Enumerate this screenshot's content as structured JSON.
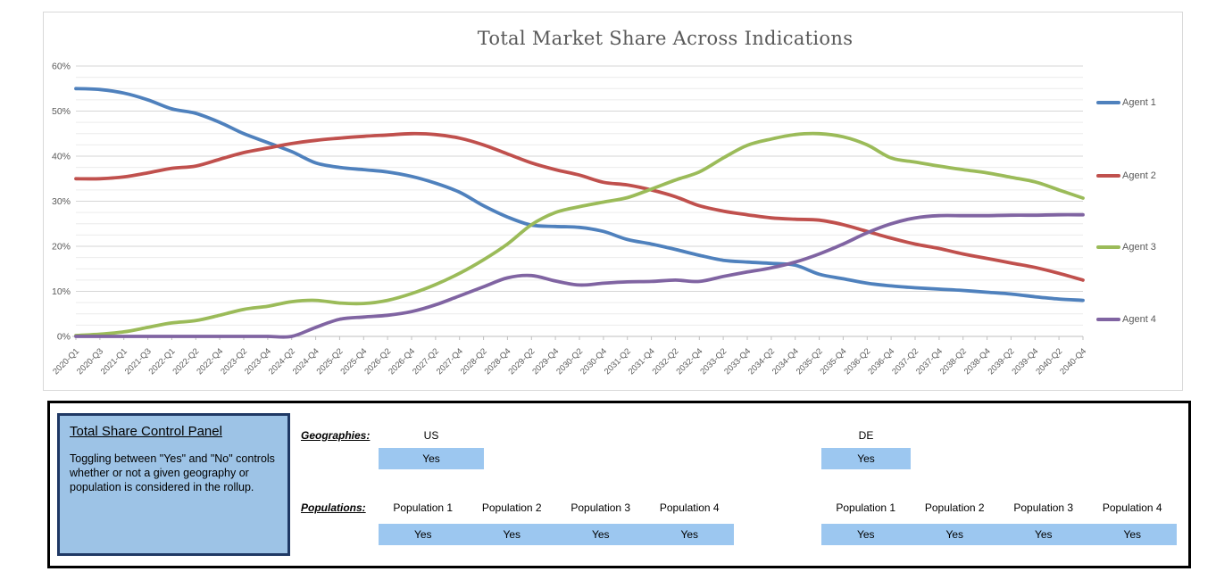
{
  "chart": {
    "title": "Total Market Share Across Indications",
    "y_tick_labels": [
      "0%",
      "10%",
      "20%",
      "30%",
      "40%",
      "50%",
      "60%"
    ],
    "axis_text_color": "#595959",
    "major_grid_color": "#d6d6d6",
    "minor_grid_color": "#ececec",
    "axis_line_color": "#bfbfbf"
  },
  "chart_data": {
    "type": "line",
    "title": "Total Market Share Across Indications",
    "xlabel": "",
    "ylabel": "",
    "ylim": [
      0,
      60
    ],
    "y_unit": "percent",
    "y_major_step": 10,
    "y_minor_step": 2.5,
    "grid": true,
    "legend_position": "right",
    "categories": [
      "2020-Q1",
      "2020-Q3",
      "2021-Q1",
      "2021-Q3",
      "2022-Q1",
      "2022-Q2",
      "2022-Q4",
      "2023-Q2",
      "2023-Q4",
      "2024-Q2",
      "2024-Q4",
      "2025-Q2",
      "2025-Q4",
      "2026-Q2",
      "2026-Q4",
      "2027-Q2",
      "2027-Q4",
      "2028-Q2",
      "2028-Q4",
      "2029-Q2",
      "2029-Q4",
      "2030-Q2",
      "2030-Q4",
      "2031-Q2",
      "2031-Q4",
      "2032-Q2",
      "2032-Q4",
      "2033-Q2",
      "2033-Q4",
      "2034-Q2",
      "2034-Q4",
      "2035-Q2",
      "2035-Q4",
      "2036-Q2",
      "2036-Q4",
      "2037-Q2",
      "2037-Q4",
      "2038-Q2",
      "2038-Q4",
      "2039-Q2",
      "2039-Q4",
      "2040-Q2",
      "2040-Q4"
    ],
    "series": [
      {
        "name": "Agent 1",
        "color": "#4f81bd",
        "values": [
          55,
          54.8,
          54,
          52.5,
          50.5,
          49.5,
          47.5,
          45,
          43,
          41,
          38.5,
          37.5,
          37,
          36.5,
          35.5,
          34,
          32,
          29,
          26.5,
          24.7,
          24.4,
          24.2,
          23.3,
          21.5,
          20.5,
          19.3,
          18,
          16.9,
          16.5,
          16.2,
          15.8,
          13.8,
          12.8,
          11.8,
          11.2,
          10.8,
          10.5,
          10.2,
          9.8,
          9.4,
          8.8,
          8.3,
          8
        ]
      },
      {
        "name": "Agent 2",
        "color": "#c0504d",
        "values": [
          35,
          35,
          35.4,
          36.3,
          37.3,
          37.8,
          39.3,
          40.8,
          41.8,
          42.8,
          43.5,
          44,
          44.4,
          44.7,
          45,
          44.8,
          44,
          42.5,
          40.5,
          38.5,
          37,
          35.8,
          34.2,
          33.6,
          32.5,
          31,
          29,
          27.8,
          27,
          26.3,
          26,
          25.8,
          24.8,
          23.3,
          21.8,
          20.5,
          19.5,
          18.3,
          17.3,
          16.3,
          15.3,
          14,
          12.5
        ]
      },
      {
        "name": "Agent 3",
        "color": "#9bbb59",
        "values": [
          0.2,
          0.5,
          1,
          2,
          3,
          3.5,
          4.7,
          6,
          6.7,
          7.7,
          8,
          7.4,
          7.3,
          8,
          9.5,
          11.5,
          14,
          17,
          20.5,
          24.8,
          27.5,
          28.8,
          29.8,
          30.8,
          32.7,
          34.7,
          36.5,
          39.6,
          42.4,
          43.8,
          44.8,
          45,
          44.3,
          42.5,
          39.6,
          38.7,
          37.8,
          37,
          36.3,
          35.3,
          34.3,
          32.5,
          30.7
        ]
      },
      {
        "name": "Agent 4",
        "color": "#8064a2",
        "values": [
          0,
          0,
          0,
          0,
          0,
          0,
          0,
          0,
          0,
          0,
          2,
          3.8,
          4.3,
          4.7,
          5.5,
          7,
          9,
          11,
          13,
          13.5,
          12.3,
          11.4,
          11.8,
          12.1,
          12.2,
          12.5,
          12.2,
          13.3,
          14.3,
          15.2,
          16.5,
          18.3,
          20.5,
          23,
          25,
          26.3,
          26.8,
          26.8,
          26.8,
          26.9,
          26.9,
          27,
          27
        ]
      }
    ]
  },
  "control_panel": {
    "title": "Total Share Control Panel",
    "description": "Toggling between \"Yes\" and \"No\" controls whether or not a given geography or population is considered in the rollup.",
    "geographies_label": "Geographies:",
    "populations_label": "Populations:",
    "toggle_on_value": "Yes",
    "toggle_fill_color": "#9cc7f0",
    "panel_fill_color": "#9dc3e6",
    "panel_border_color": "#1f3864",
    "groups": [
      {
        "geography": "US",
        "geography_toggle": "Yes",
        "populations": [
          {
            "label": "Population 1",
            "toggle": "Yes"
          },
          {
            "label": "Population 2",
            "toggle": "Yes"
          },
          {
            "label": "Population 3",
            "toggle": "Yes"
          },
          {
            "label": "Population 4",
            "toggle": "Yes"
          }
        ]
      },
      {
        "geography": "DE",
        "geography_toggle": "Yes",
        "populations": [
          {
            "label": "Population 1",
            "toggle": "Yes"
          },
          {
            "label": "Population 2",
            "toggle": "Yes"
          },
          {
            "label": "Population 3",
            "toggle": "Yes"
          },
          {
            "label": "Population 4",
            "toggle": "Yes"
          }
        ]
      }
    ]
  }
}
